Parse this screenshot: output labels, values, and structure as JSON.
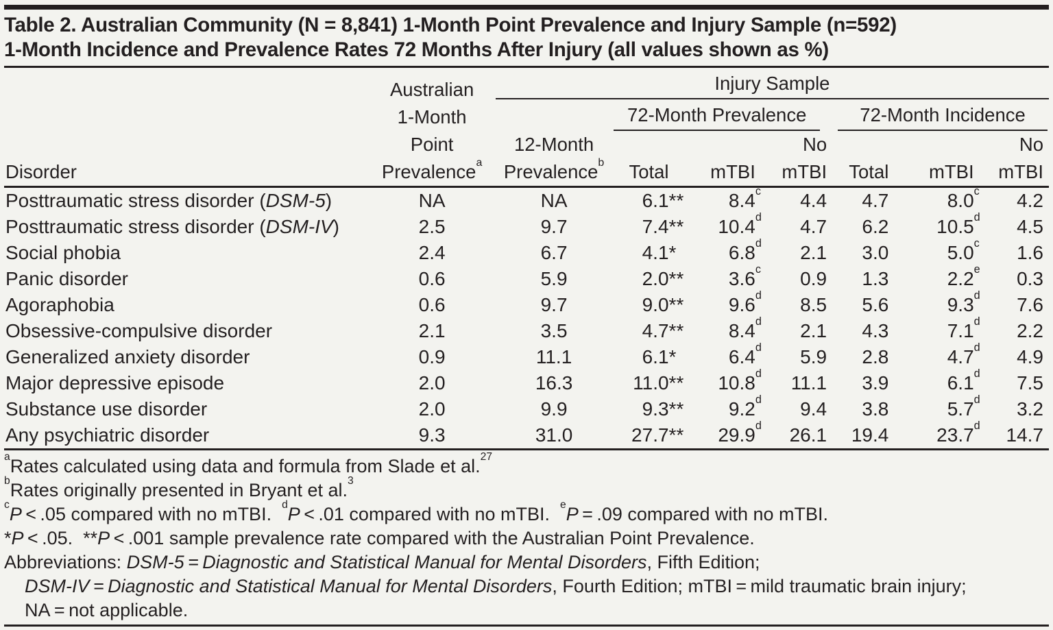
{
  "title": {
    "line1": "Table 2. Australian Community (N = 8,841) 1-Month Point Prevalence and Injury Sample (n=592)",
    "line2": "1-Month Incidence and Prevalence Rates 72 Months After Injury (all values shown as %)"
  },
  "table": {
    "headers": {
      "disorder": "Disorder",
      "australian_lines": [
        "Australian",
        "1-Month",
        "Point",
        "Prevalence^{a}"
      ],
      "injury_sample": "Injury Sample",
      "twelve_month_lines": [
        "12-Month",
        "Prevalence^{b}"
      ],
      "prevalence_72": "72-Month Prevalence",
      "incidence_72": "72-Month Incidence",
      "sub_labels": [
        [
          "Total"
        ],
        [
          "mTBI"
        ],
        [
          "No",
          "mTBI"
        ],
        [
          "Total"
        ],
        [
          "mTBI"
        ],
        [
          "No",
          "mTBI"
        ]
      ]
    },
    "rows": [
      {
        "name": "Posttraumatic stress disorder",
        "italic": "DSM-5",
        "cells": [
          "NA",
          "NA",
          "6.1|**",
          "8.4|c",
          "4.4",
          "4.7",
          "8.0|c",
          "4.2"
        ]
      },
      {
        "name": "Posttraumatic stress disorder",
        "italic": "DSM-IV",
        "cells": [
          "2.5",
          "9.7",
          "7.4|**",
          "10.4|d",
          "4.7",
          "6.2",
          "10.5|d",
          "4.5"
        ]
      },
      {
        "name": "Social phobia",
        "italic": "",
        "cells": [
          "2.4",
          "6.7",
          "4.1|*",
          "6.8|d",
          "2.1",
          "3.0",
          "5.0|c",
          "1.6"
        ]
      },
      {
        "name": "Panic disorder",
        "italic": "",
        "cells": [
          "0.6",
          "5.9",
          "2.0|**",
          "3.6|c",
          "0.9",
          "1.3",
          "2.2|e",
          "0.3"
        ]
      },
      {
        "name": "Agoraphobia",
        "italic": "",
        "cells": [
          "0.6",
          "9.7",
          "9.0|**",
          "9.6|d",
          "8.5",
          "5.6",
          "9.3|d",
          "7.6"
        ]
      },
      {
        "name": "Obsessive-compulsive disorder",
        "italic": "",
        "cells": [
          "2.1",
          "3.5",
          "4.7|**",
          "8.4|d",
          "2.1",
          "4.3",
          "7.1|d",
          "2.2"
        ]
      },
      {
        "name": "Generalized anxiety disorder",
        "italic": "",
        "cells": [
          "0.9",
          "11.1",
          "6.1|*",
          "6.4|d",
          "5.9",
          "2.8",
          "4.7|d",
          "4.9"
        ]
      },
      {
        "name": "Major depressive episode",
        "italic": "",
        "cells": [
          "2.0",
          "16.3",
          "11.0|**",
          "10.8|d",
          "11.1",
          "3.9",
          "6.1|d",
          "7.5"
        ]
      },
      {
        "name": "Substance use disorder",
        "italic": "",
        "cells": [
          "2.0",
          "9.9",
          "9.3|**",
          "9.2|d",
          "9.4",
          "3.8",
          "5.7|d",
          "3.2"
        ]
      },
      {
        "name": "Any psychiatric disorder",
        "italic": "",
        "cells": [
          "9.3",
          "31.0",
          "27.7|**",
          "29.9|d",
          "26.1",
          "19.4",
          "23.7|d",
          "14.7"
        ]
      }
    ]
  },
  "footnotes": {
    "a": "^{a}Rates calculated using data and formula from Slade et al.^{27}",
    "b": "^{b}Rates originally presented in Bryant et al.^{3}",
    "cde": "^{c}~P~ < .05 compared with no mTBI.  ^{d}~P~ < .01 compared with no mTBI.  ^{e}~P~ = .09 compared with no mTBI.",
    "stars": "*~P~ < .05.  **~P~ < .001 sample prevalence rate compared with the Australian Point Prevalence.",
    "abbr1": "Abbreviations: ~DSM-5 = Diagnostic and Statistical Manual for Mental Disorders~, Fifth Edition;",
    "abbr2": "~DSM-IV = Diagnostic and Statistical Manual for Mental Disorders~, Fourth Edition; mTBI = mild traumatic brain injury;",
    "abbr3": "NA = not applicable."
  },
  "colors": {
    "text": "#231f20",
    "background": "#f3f3ef"
  }
}
